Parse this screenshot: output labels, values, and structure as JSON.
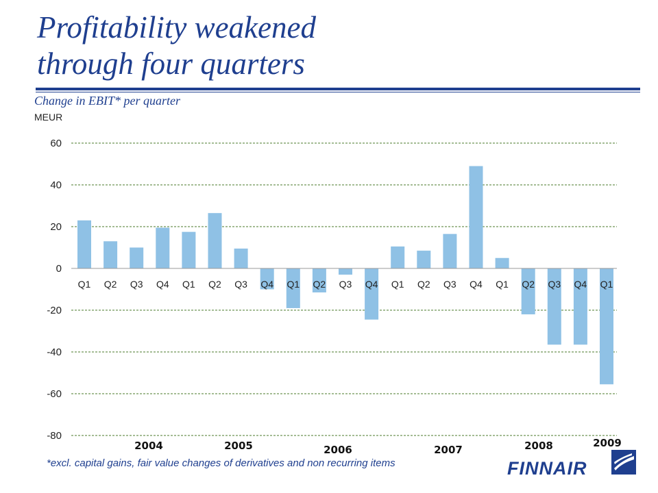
{
  "title": {
    "line1": "Profitability weakened",
    "line2": "through four quarters"
  },
  "subtitle": "Change in EBIT* per quarter",
  "unit": "MEUR",
  "footnote": "*excl. capital gains, fair value changes of derivatives and non recurring items",
  "logo": {
    "text": "FINNAIR",
    "icon": "finnair-emblem-icon"
  },
  "colors": {
    "bar": "#8fc1e5",
    "brand": "#1f3f8f",
    "grid": "#4a7a2a"
  },
  "years": [
    "2004",
    "2005",
    "2006",
    "2007",
    "2008",
    "2009"
  ],
  "chart_data": {
    "type": "bar",
    "categories": [
      "Q1",
      "Q2",
      "Q3",
      "Q4",
      "Q1",
      "Q2",
      "Q3",
      "Q4",
      "Q1",
      "Q2",
      "Q3",
      "Q4",
      "Q1",
      "Q2",
      "Q3",
      "Q4",
      "Q1",
      "Q2",
      "Q3",
      "Q4",
      "Q1"
    ],
    "values": [
      23,
      13,
      10,
      19.5,
      17.5,
      26.5,
      9.5,
      -10,
      -19,
      -11.5,
      -3,
      -24.5,
      10.5,
      8.5,
      16.5,
      49,
      5,
      -22,
      -36.5,
      -36.5,
      -55.5
    ],
    "title": "Change in EBIT* per quarter",
    "ylabel": "MEUR",
    "ylim": [
      -80,
      60
    ],
    "yticks": [
      "60",
      "40",
      "20",
      "0",
      "-20",
      "-40",
      "-60",
      "-80"
    ],
    "grid": true
  }
}
